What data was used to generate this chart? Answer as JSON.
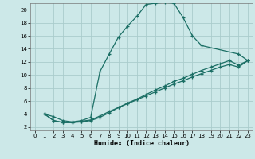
{
  "xlabel": "Humidex (Indice chaleur)",
  "bg_color": "#cce8e8",
  "grid_color": "#aacccc",
  "line_color": "#1a6e64",
  "xlim": [
    -0.5,
    23.5
  ],
  "ylim": [
    1.5,
    21.0
  ],
  "xticks": [
    0,
    1,
    2,
    3,
    4,
    5,
    6,
    7,
    8,
    9,
    10,
    11,
    12,
    13,
    14,
    15,
    16,
    17,
    18,
    19,
    20,
    21,
    22,
    23
  ],
  "yticks": [
    2,
    4,
    6,
    8,
    10,
    12,
    14,
    16,
    18,
    20
  ],
  "curve1_x": [
    1,
    2,
    3,
    4,
    5,
    6,
    7,
    8,
    9,
    10,
    11,
    12,
    13,
    14,
    15,
    16,
    17,
    18,
    22,
    23
  ],
  "curve1_y": [
    4.0,
    3.6,
    3.0,
    2.8,
    3.0,
    3.5,
    10.5,
    13.2,
    15.8,
    17.5,
    19.0,
    20.8,
    21.0,
    21.1,
    21.0,
    18.8,
    16.0,
    14.5,
    13.2,
    12.2
  ],
  "curve2_x": [
    1,
    2,
    3,
    4,
    5,
    6,
    7,
    8,
    9,
    10,
    11,
    12,
    13,
    14,
    15,
    16,
    17,
    18,
    19,
    20,
    21,
    22,
    23
  ],
  "curve2_y": [
    4.0,
    3.0,
    2.7,
    2.7,
    2.8,
    3.0,
    3.5,
    4.2,
    5.0,
    5.7,
    6.3,
    7.0,
    7.7,
    8.3,
    9.0,
    9.5,
    10.1,
    10.7,
    11.2,
    11.7,
    12.2,
    11.5,
    12.2
  ],
  "curve3_x": [
    1,
    2,
    3,
    4,
    5,
    6,
    7,
    8,
    9,
    10,
    11,
    12,
    13,
    14,
    15,
    16,
    17,
    18,
    19,
    20,
    21,
    22,
    23
  ],
  "curve3_y": [
    4.0,
    3.0,
    2.7,
    2.7,
    2.9,
    3.1,
    3.7,
    4.4,
    5.0,
    5.6,
    6.2,
    6.8,
    7.4,
    8.0,
    8.6,
    9.1,
    9.7,
    10.2,
    10.7,
    11.2,
    11.6,
    11.2,
    12.2
  ]
}
